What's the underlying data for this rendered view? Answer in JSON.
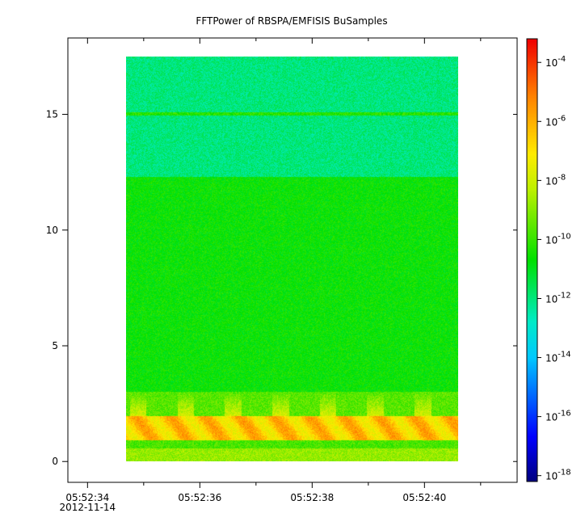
{
  "chart_data": {
    "type": "heatmap",
    "title": "FFTPower of RBSPA/EMFISIS  BuSamples",
    "xlabel": "",
    "ylabel": "",
    "x_ticks": [
      {
        "value": 34,
        "label": "05:52:34",
        "sublabel": "2012-11-14"
      },
      {
        "value": 36,
        "label": "05:52:36",
        "sublabel": ""
      },
      {
        "value": 38,
        "label": "05:52:38",
        "sublabel": ""
      },
      {
        "value": 40,
        "label": "05:52:40",
        "sublabel": ""
      }
    ],
    "x_minor_ticks": [
      35,
      37,
      39,
      41
    ],
    "xlim": [
      33.65,
      41.65
    ],
    "data_time_range": [
      34.68,
      40.6
    ],
    "y_ticks": [
      {
        "value": 0,
        "label": "0"
      },
      {
        "value": 5,
        "label": "5"
      },
      {
        "value": 10,
        "label": "10"
      },
      {
        "value": 15,
        "label": "15"
      }
    ],
    "ylim": [
      -0.9,
      18.3
    ],
    "data_freq_range": [
      0.0,
      17.5
    ],
    "colorbar": {
      "scale": "log",
      "range_exponents": [
        -18.2,
        -3.2
      ],
      "tick_exponents": [
        -4,
        -6,
        -8,
        -10,
        -12,
        -14,
        -16,
        -18
      ]
    },
    "bands": [
      {
        "freq_range": [
          0.0,
          0.55
        ],
        "log_power": -8.8,
        "note": "yellow"
      },
      {
        "freq_range": [
          0.55,
          0.9
        ],
        "log_power": -9.8,
        "note": "green"
      },
      {
        "freq_range": [
          0.9,
          1.95
        ],
        "log_power": -6.2,
        "note": "red-orange"
      },
      {
        "freq_range": [
          1.95,
          3.0
        ],
        "log_power": -9.6,
        "note": "patchy yellow"
      },
      {
        "freq_range": [
          3.0,
          12.3
        ],
        "log_power": -10.6,
        "note": "green"
      },
      {
        "freq_range": [
          12.3,
          17.5
        ],
        "log_power": -12.0,
        "note": "teal green"
      },
      {
        "freq_range": [
          14.95,
          15.08
        ],
        "log_power": -10.2,
        "note": "line"
      }
    ]
  }
}
